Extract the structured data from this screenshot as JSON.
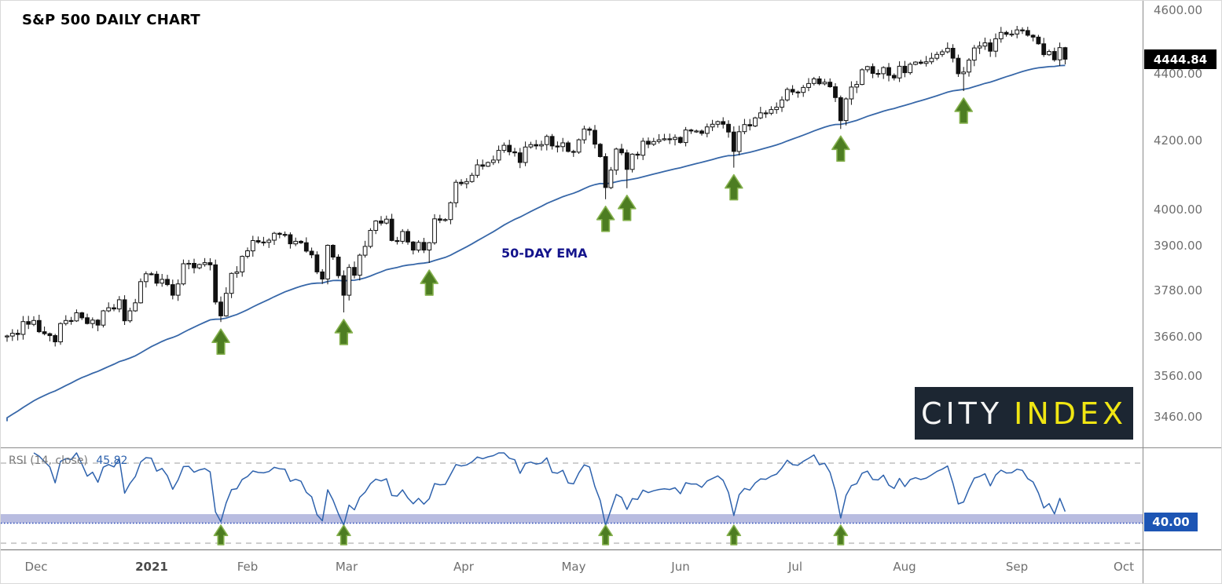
{
  "title": "S&P 500 DAILY CHART",
  "overlay_label": "50-DAY EMA",
  "rsi_header": {
    "name": "RSI (14, close)",
    "value": "45.82"
  },
  "price_flag": "4444.84",
  "rsi_flag": "40.00",
  "logo": {
    "word1": "CITY",
    "word2": "INDEX"
  },
  "colors": {
    "candle_up_fill": "#ffffff",
    "candle_down_fill": "#111111",
    "candle_stroke": "#111111",
    "ema_line": "#3767a8",
    "rsi_line": "#2e62ad",
    "arrow_fill": "#4d7d22",
    "arrow_stroke": "#85b14e",
    "dashed_level": "#b0b0b0",
    "band_fill": "#b8bce0",
    "band_dotted": "#2b4db8",
    "axis_text": "#6f6f6f",
    "price_flag_bg": "#000000",
    "rsi_flag_bg": "#1d55b4",
    "logo_bg": "#1c2632",
    "logo_yellow": "#f0e613",
    "ema_label_color": "#14148c"
  },
  "chart_data": {
    "main": {
      "type": "candlestick",
      "title": "S&P 500 DAILY CHART",
      "last_price": 4444.84,
      "first_open": 3660,
      "closes": [
        3662,
        3669,
        3666,
        3699,
        3692,
        3702,
        3673,
        3668,
        3663,
        3647,
        3694,
        3702,
        3701,
        3722,
        3709,
        3694,
        3703,
        3690,
        3727,
        3735,
        3732,
        3756,
        3701,
        3727,
        3748,
        3804,
        3825,
        3824,
        3800,
        3810,
        3796,
        3768,
        3798,
        3852,
        3853,
        3841,
        3850,
        3855,
        3849,
        3750,
        3714,
        3773,
        3826,
        3830,
        3872,
        3887,
        3915,
        3911,
        3910,
        3916,
        3935,
        3932,
        3931,
        3906,
        3913,
        3909,
        3886,
        3876,
        3830,
        3811,
        3902,
        3870,
        3820,
        3768,
        3842,
        3821,
        3875,
        3899,
        3943,
        3969,
        3963,
        3974,
        3915,
        3913,
        3940,
        3911,
        3889,
        3910,
        3889,
        3909,
        3975,
        3971,
        3973,
        4020,
        4078,
        4074,
        4080,
        4098,
        4128,
        4124,
        4135,
        4142,
        4170,
        4185,
        4166,
        4163,
        4135,
        4180,
        4187,
        4183,
        4187,
        4211,
        4183,
        4181,
        4192,
        4167,
        4165,
        4201,
        4233,
        4229,
        4188,
        4152,
        4063,
        4113,
        4174,
        4163,
        4115,
        4159,
        4156,
        4197,
        4188,
        4196,
        4201,
        4204,
        4202,
        4208,
        4193,
        4230,
        4227,
        4227,
        4220,
        4239,
        4247,
        4255,
        4247,
        4224,
        4167,
        4225,
        4246,
        4242,
        4266,
        4281,
        4280,
        4291,
        4298,
        4320,
        4352,
        4344,
        4343,
        4358,
        4370,
        4384,
        4369,
        4374,
        4360,
        4327,
        4258,
        4323,
        4359,
        4367,
        4412,
        4422,
        4401,
        4400,
        4419,
        4395,
        4387,
        4423,
        4403,
        4429,
        4436,
        4432,
        4437,
        4448,
        4460,
        4468,
        4479,
        4448,
        4400,
        4405,
        4442,
        4480,
        4486,
        4496,
        4470,
        4509,
        4529,
        4523,
        4524,
        4537,
        4535,
        4520,
        4514,
        4493,
        4459,
        4469,
        4443,
        4481,
        4444.84
      ],
      "low_overrides": {
        "40": 3698,
        "63": 3723,
        "79": 3854,
        "112": 4030,
        "116": 4061,
        "136": 4120,
        "156": 4233,
        "179": 4347
      },
      "overlay": {
        "name": "50-DAY EMA",
        "type": "ema",
        "period": 50,
        "seed": 3450
      },
      "buy_arrows": [
        40,
        63,
        79,
        112,
        116,
        136,
        156,
        179
      ],
      "y_axis": {
        "scale": "log",
        "ticks": [
          4600,
          4400,
          4200,
          4000,
          3900,
          3780,
          3660,
          3560,
          3460
        ],
        "ref_value": 4600,
        "ref_y": 12,
        "k": 1820
      },
      "x_axis": {
        "x0": 8,
        "dx": 6.8,
        "ticks": [
          {
            "label": "Dec",
            "i": 5.5
          },
          {
            "label": "2021",
            "i": 27,
            "bold": true
          },
          {
            "label": "Feb",
            "i": 45
          },
          {
            "label": "Mar",
            "i": 63.5
          },
          {
            "label": "Apr",
            "i": 85.5
          },
          {
            "label": "May",
            "i": 106
          },
          {
            "label": "Jun",
            "i": 126
          },
          {
            "label": "Jul",
            "i": 147.5
          },
          {
            "label": "Aug",
            "i": 168
          },
          {
            "label": "Sep",
            "i": 189
          },
          {
            "label": "Oct",
            "i": 209
          }
        ]
      }
    },
    "rsi": {
      "type": "line",
      "name": "RSI (14, close)",
      "period": 14,
      "source": "close",
      "current": 45.82,
      "levels": {
        "upper_dashed": 70,
        "axis_label": 60,
        "band_top": 44.5,
        "band_bottom": 40,
        "lower_dashed": 30
      },
      "buy_arrows": [
        40,
        63,
        112,
        136,
        156
      ],
      "ylim": [
        26,
        77
      ]
    }
  }
}
